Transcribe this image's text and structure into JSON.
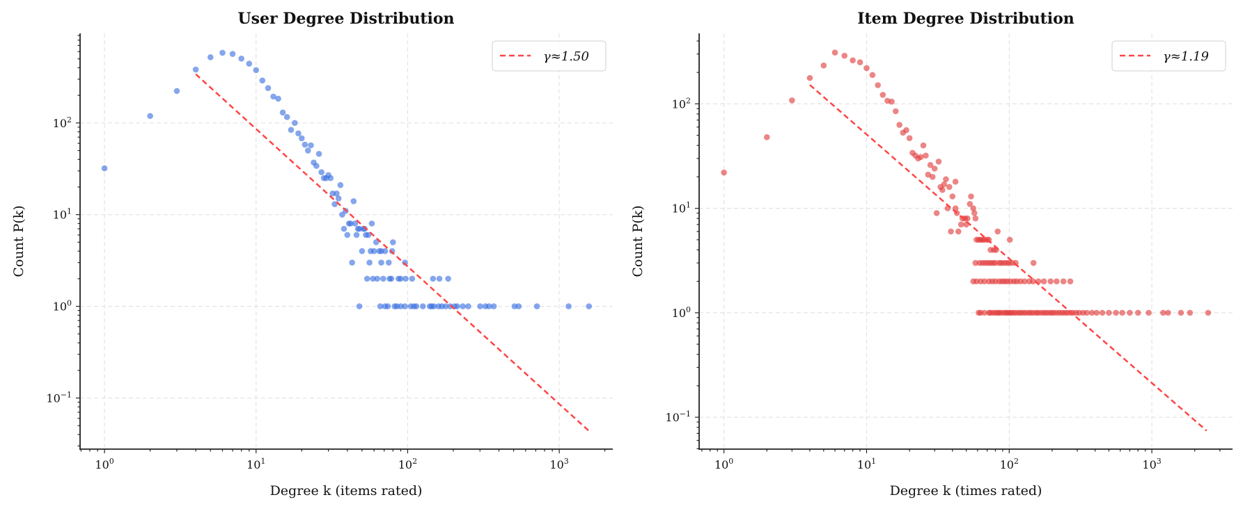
{
  "chart_data": [
    {
      "type": "scatter",
      "title": "User Degree Distribution",
      "xlabel": "Degree k (items rated)",
      "ylabel": "Count P(k)",
      "xscale": "log",
      "yscale": "log",
      "xlim": [
        0.69,
        2256
      ],
      "ylim": [
        0.0277,
        948
      ],
      "xticks": [
        1,
        10,
        100,
        1000
      ],
      "yticks": [
        0.1,
        1,
        10,
        100
      ],
      "grid": true,
      "legend": {
        "placement": "top-right",
        "entries": [
          "γ≈1.50"
        ]
      },
      "point_color": "#3a6fe0",
      "fit_color": "#ff4444",
      "fit": {
        "gamma": 1.5,
        "C": 2720,
        "k_range": [
          4,
          1566
        ]
      },
      "points": [
        [
          1,
          32
        ],
        [
          2,
          119
        ],
        [
          3,
          223
        ],
        [
          4,
          382
        ],
        [
          5,
          521
        ],
        [
          6,
          582
        ],
        [
          7,
          566
        ],
        [
          8,
          503
        ],
        [
          9,
          443
        ],
        [
          10,
          377
        ],
        [
          11,
          290
        ],
        [
          12,
          240
        ],
        [
          13,
          194
        ],
        [
          14,
          184
        ],
        [
          15,
          130
        ],
        [
          16,
          116
        ],
        [
          17,
          84
        ],
        [
          18,
          100
        ],
        [
          19,
          77
        ],
        [
          20,
          68
        ],
        [
          21,
          58
        ],
        [
          22,
          50
        ],
        [
          23,
          57
        ],
        [
          24,
          37
        ],
        [
          25,
          34
        ],
        [
          26,
          46
        ],
        [
          27,
          29
        ],
        [
          28,
          25
        ],
        [
          29,
          25
        ],
        [
          30,
          27
        ],
        [
          31,
          25
        ],
        [
          32,
          17
        ],
        [
          33,
          13
        ],
        [
          34,
          17
        ],
        [
          35,
          15
        ],
        [
          36,
          21
        ],
        [
          37,
          10
        ],
        [
          38,
          7
        ],
        [
          39,
          11
        ],
        [
          40,
          6
        ],
        [
          41,
          8
        ],
        [
          42,
          8
        ],
        [
          43,
          3
        ],
        [
          44,
          14
        ],
        [
          45,
          8
        ],
        [
          46,
          6
        ],
        [
          47,
          7
        ],
        [
          48,
          7
        ],
        [
          50,
          4
        ],
        [
          51,
          7
        ],
        [
          52,
          7
        ],
        [
          53,
          6
        ],
        [
          55,
          6
        ],
        [
          58,
          8
        ],
        [
          57,
          4
        ],
        [
          60,
          4
        ],
        [
          62,
          5
        ],
        [
          65,
          4
        ],
        [
          67,
          4
        ],
        [
          71,
          4
        ],
        [
          79,
          4
        ],
        [
          80,
          5
        ],
        [
          54,
          2
        ],
        [
          59,
          2
        ],
        [
          63,
          2
        ],
        [
          69,
          2
        ],
        [
          76,
          2
        ],
        [
          78,
          2
        ],
        [
          87,
          2
        ],
        [
          90,
          2
        ],
        [
          97,
          2
        ],
        [
          107,
          2
        ],
        [
          147,
          2
        ],
        [
          162,
          2
        ],
        [
          185,
          2
        ],
        [
          56,
          3
        ],
        [
          67,
          3
        ],
        [
          75,
          3
        ],
        [
          96,
          3
        ],
        [
          48,
          1
        ],
        [
          66,
          1
        ],
        [
          71,
          1
        ],
        [
          74,
          1
        ],
        [
          82,
          1
        ],
        [
          85,
          1
        ],
        [
          90,
          1
        ],
        [
          96,
          1
        ],
        [
          105,
          1
        ],
        [
          110,
          1
        ],
        [
          114,
          1
        ],
        [
          126,
          1
        ],
        [
          140,
          1
        ],
        [
          144,
          1
        ],
        [
          149,
          1
        ],
        [
          160,
          1
        ],
        [
          168,
          1
        ],
        [
          178,
          1
        ],
        [
          191,
          1
        ],
        [
          204,
          1
        ],
        [
          212,
          1
        ],
        [
          231,
          1
        ],
        [
          251,
          1
        ],
        [
          301,
          1
        ],
        [
          326,
          1
        ],
        [
          344,
          1
        ],
        [
          370,
          1
        ],
        [
          507,
          1
        ],
        [
          540,
          1
        ],
        [
          713,
          1
        ],
        [
          1153,
          1
        ],
        [
          1570,
          1
        ]
      ]
    },
    {
      "type": "scatter",
      "title": "Item Degree Distribution",
      "xlabel": "Degree k (times rated)",
      "ylabel": "Count P(k)",
      "xscale": "log",
      "yscale": "log",
      "xlim": [
        0.67,
        3680
      ],
      "ylim": [
        0.0495,
        473
      ],
      "xticks": [
        1,
        10,
        100,
        1000
      ],
      "yticks": [
        0.1,
        1,
        10,
        100
      ],
      "grid": true,
      "legend": {
        "placement": "top-right",
        "entries": [
          "γ≈1.19"
        ]
      },
      "point_color": "#e03a3a",
      "fit_color": "#ff4444",
      "fit": {
        "gamma": 1.19,
        "C": 790,
        "k_range": [
          4,
          2420
        ]
      },
      "points": [
        [
          1,
          22
        ],
        [
          2,
          48
        ],
        [
          3,
          108
        ],
        [
          4,
          177
        ],
        [
          5,
          233
        ],
        [
          6,
          310
        ],
        [
          7,
          289
        ],
        [
          8,
          261
        ],
        [
          9,
          250
        ],
        [
          10,
          220
        ],
        [
          11,
          189
        ],
        [
          12,
          151
        ],
        [
          13,
          122
        ],
        [
          14,
          107
        ],
        [
          15,
          105
        ],
        [
          16,
          85
        ],
        [
          17,
          63
        ],
        [
          18,
          53
        ],
        [
          19,
          56
        ],
        [
          20,
          47
        ],
        [
          21,
          34
        ],
        [
          22,
          32
        ],
        [
          23,
          30
        ],
        [
          24,
          31
        ],
        [
          25,
          40
        ],
        [
          26,
          32
        ],
        [
          27,
          21
        ],
        [
          28,
          26
        ],
        [
          29,
          20
        ],
        [
          30,
          24
        ],
        [
          31,
          9
        ],
        [
          32,
          28
        ],
        [
          33,
          16
        ],
        [
          34,
          15
        ],
        [
          35,
          17
        ],
        [
          36,
          19
        ],
        [
          37,
          10
        ],
        [
          38,
          16
        ],
        [
          39,
          6
        ],
        [
          40,
          13
        ],
        [
          42,
          10
        ],
        [
          42,
          18
        ],
        [
          43,
          9
        ],
        [
          44,
          6
        ],
        [
          46,
          7
        ],
        [
          47,
          8
        ],
        [
          49,
          8
        ],
        [
          50,
          7
        ],
        [
          51,
          8
        ],
        [
          53,
          11
        ],
        [
          54,
          13
        ],
        [
          57,
          9
        ],
        [
          58,
          8
        ],
        [
          56,
          10
        ],
        [
          59,
          5
        ],
        [
          61,
          5
        ],
        [
          63,
          5
        ],
        [
          65,
          5
        ],
        [
          67,
          5
        ],
        [
          70,
          5
        ],
        [
          72,
          5
        ],
        [
          101,
          5
        ],
        [
          83,
          6
        ],
        [
          74,
          4
        ],
        [
          78,
          4
        ],
        [
          81,
          4
        ],
        [
          58,
          3
        ],
        [
          62,
          3
        ],
        [
          65,
          3
        ],
        [
          68,
          3
        ],
        [
          71,
          3
        ],
        [
          74,
          3
        ],
        [
          77,
          3
        ],
        [
          80,
          3
        ],
        [
          85,
          3
        ],
        [
          88,
          3
        ],
        [
          92,
          3
        ],
        [
          96,
          3
        ],
        [
          100,
          3
        ],
        [
          105,
          3
        ],
        [
          111,
          3
        ],
        [
          148,
          3
        ],
        [
          56,
          2
        ],
        [
          59,
          2
        ],
        [
          63,
          2
        ],
        [
          67,
          2
        ],
        [
          72,
          2
        ],
        [
          76,
          2
        ],
        [
          80,
          2
        ],
        [
          85,
          2
        ],
        [
          89,
          2
        ],
        [
          93,
          2
        ],
        [
          97,
          2
        ],
        [
          102,
          2
        ],
        [
          108,
          2
        ],
        [
          113,
          2
        ],
        [
          120,
          2
        ],
        [
          128,
          2
        ],
        [
          138,
          2
        ],
        [
          147,
          2
        ],
        [
          160,
          2
        ],
        [
          175,
          2
        ],
        [
          195,
          2
        ],
        [
          215,
          2
        ],
        [
          240,
          2
        ],
        [
          268,
          2
        ],
        [
          61,
          1
        ],
        [
          63,
          1
        ],
        [
          67,
          1
        ],
        [
          72,
          1
        ],
        [
          74,
          1
        ],
        [
          77,
          1
        ],
        [
          80,
          1
        ],
        [
          83,
          1
        ],
        [
          85,
          1
        ],
        [
          88,
          1
        ],
        [
          92,
          1
        ],
        [
          95,
          1
        ],
        [
          98,
          1
        ],
        [
          101,
          1
        ],
        [
          104,
          1
        ],
        [
          108,
          1
        ],
        [
          112,
          1
        ],
        [
          117,
          1
        ],
        [
          121,
          1
        ],
        [
          126,
          1
        ],
        [
          131,
          1
        ],
        [
          137,
          1
        ],
        [
          142,
          1
        ],
        [
          148,
          1
        ],
        [
          155,
          1
        ],
        [
          160,
          1
        ],
        [
          168,
          1
        ],
        [
          175,
          1
        ],
        [
          182,
          1
        ],
        [
          190,
          1
        ],
        [
          198,
          1
        ],
        [
          205,
          1
        ],
        [
          215,
          1
        ],
        [
          225,
          1
        ],
        [
          235,
          1
        ],
        [
          245,
          1
        ],
        [
          255,
          1
        ],
        [
          268,
          1
        ],
        [
          280,
          1
        ],
        [
          295,
          1
        ],
        [
          310,
          1
        ],
        [
          330,
          1
        ],
        [
          350,
          1
        ],
        [
          380,
          1
        ],
        [
          410,
          1
        ],
        [
          450,
          1
        ],
        [
          500,
          1
        ],
        [
          560,
          1
        ],
        [
          620,
          1
        ],
        [
          700,
          1
        ],
        [
          800,
          1
        ],
        [
          950,
          1
        ],
        [
          1200,
          1
        ],
        [
          1300,
          1
        ],
        [
          1600,
          1
        ],
        [
          1850,
          1
        ],
        [
          2480,
          1
        ]
      ]
    }
  ]
}
